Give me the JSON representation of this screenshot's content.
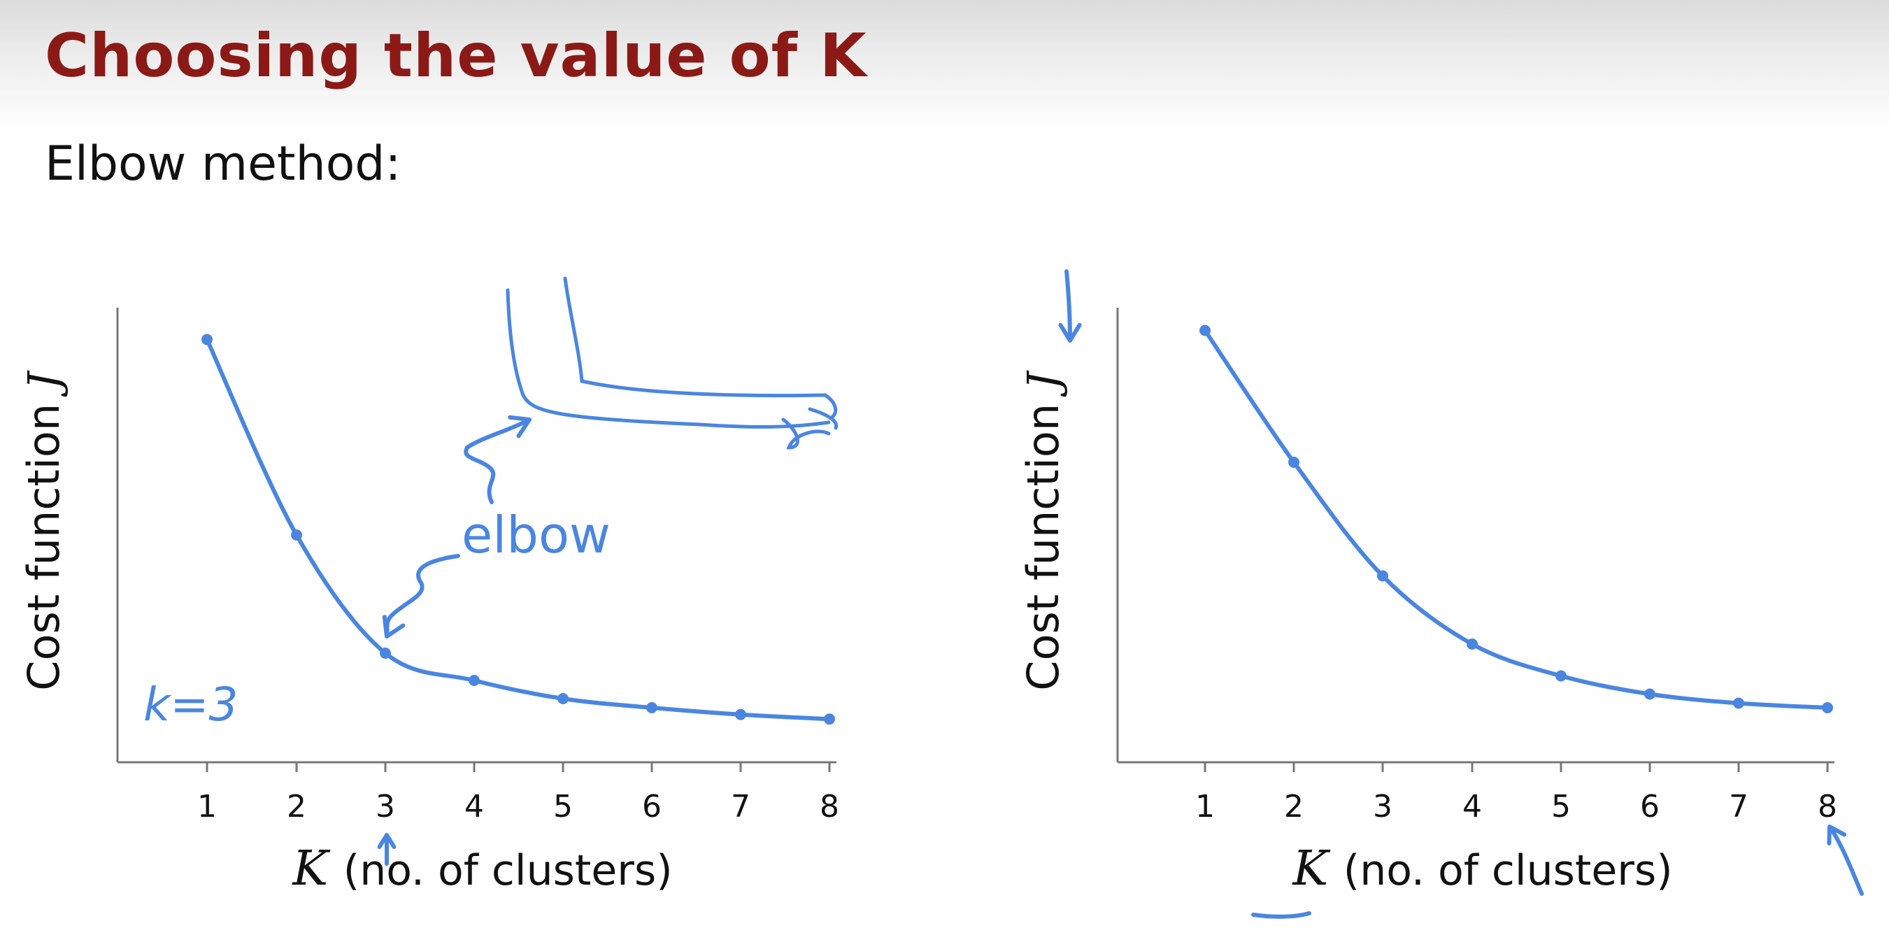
{
  "slide": {
    "title": "Choosing the value of K",
    "subtitle": "Elbow method:"
  },
  "colors": {
    "title": "#8b1a16",
    "ink": "#4a86e0",
    "axis": "#777777",
    "text": "#111111"
  },
  "chart_data": [
    {
      "type": "line",
      "x": [
        1,
        2,
        3,
        4,
        5,
        6,
        7,
        8
      ],
      "y": [
        0.93,
        0.5,
        0.24,
        0.18,
        0.14,
        0.12,
        0.105,
        0.095
      ],
      "xlabel_var": "K",
      "xlabel_rest": "(no. of clusters)",
      "ylabel_text": "Cost function",
      "ylabel_var": "J",
      "annotations": {
        "elbow_label": "elbow",
        "k_label": "k=3"
      },
      "grid": false
    },
    {
      "type": "line",
      "x": [
        1,
        2,
        3,
        4,
        5,
        6,
        7,
        8
      ],
      "y": [
        0.95,
        0.66,
        0.41,
        0.26,
        0.19,
        0.15,
        0.13,
        0.12
      ],
      "xlabel_var": "K",
      "xlabel_rest": "(no. of clusters)",
      "ylabel_text": "Cost function",
      "ylabel_var": "J",
      "grid": false
    }
  ]
}
